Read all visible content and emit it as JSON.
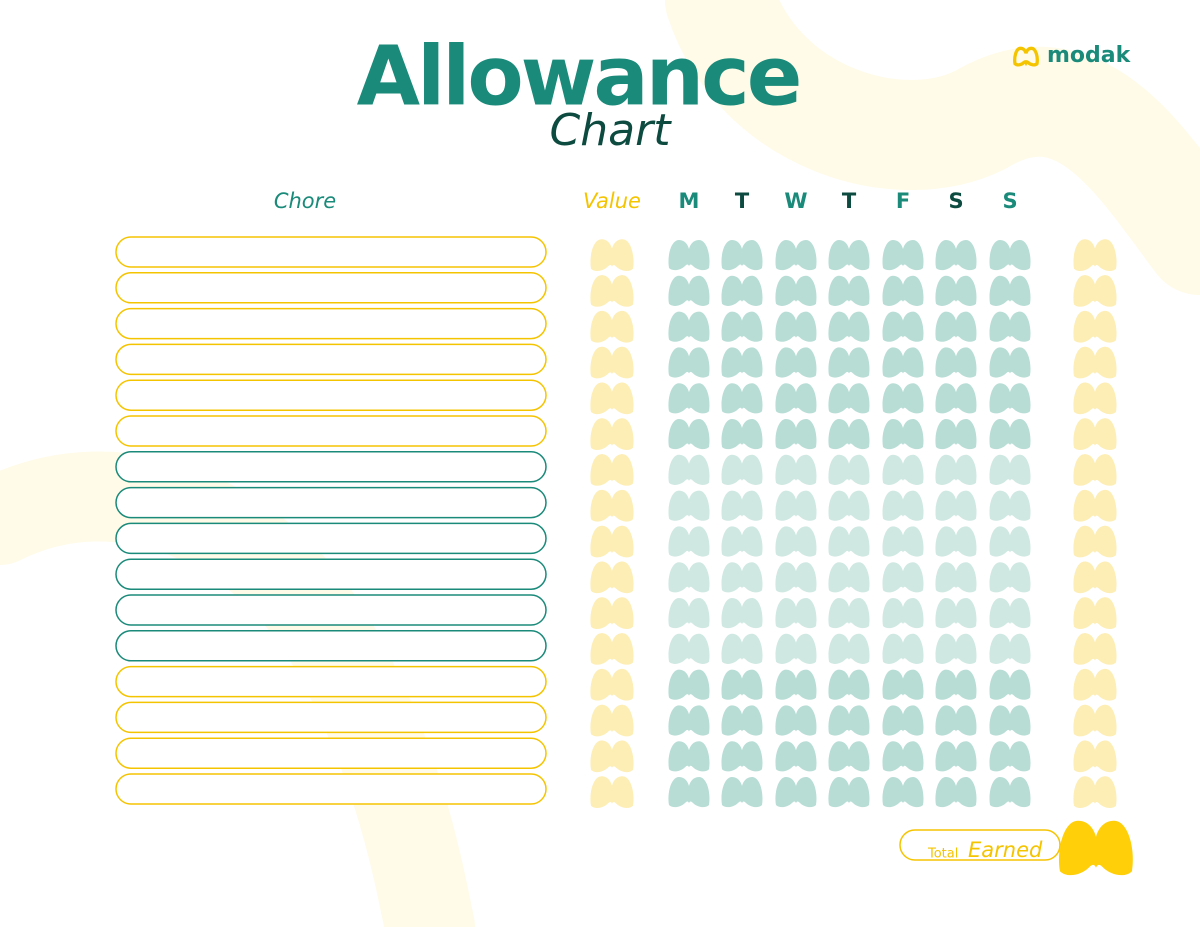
{
  "header": {
    "title": "Allowance",
    "subtitle": "Chart",
    "brand": "modak"
  },
  "columns": {
    "chore": "Chore",
    "value": "Value",
    "days": [
      "M",
      "T",
      "W",
      "T",
      "F",
      "S",
      "S"
    ]
  },
  "total": {
    "label": "Total",
    "value": "Earned"
  }
}
